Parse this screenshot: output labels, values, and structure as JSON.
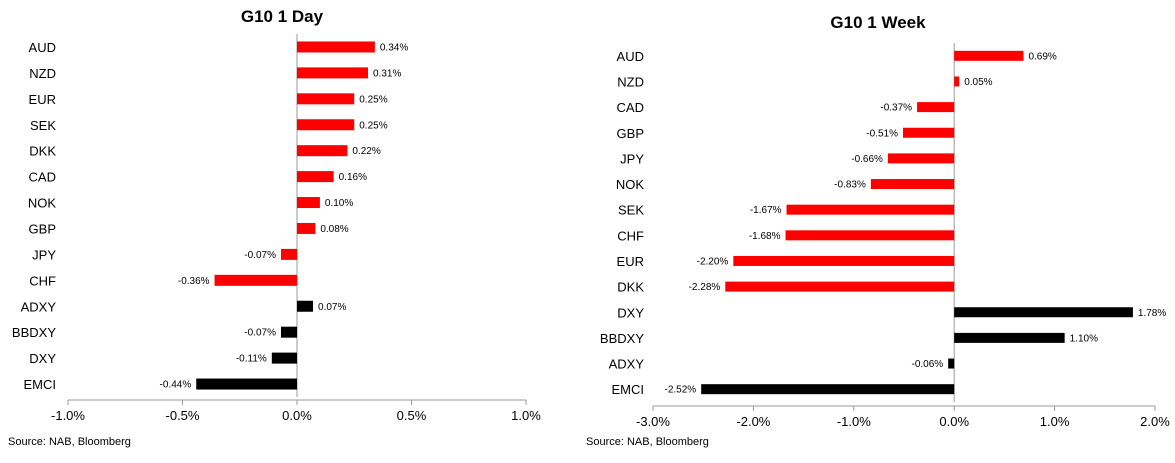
{
  "chart_data": [
    {
      "type": "bar",
      "orientation": "horizontal",
      "title": "G10 1 Day",
      "categories": [
        "AUD",
        "NZD",
        "EUR",
        "SEK",
        "DKK",
        "CAD",
        "NOK",
        "GBP",
        "JPY",
        "CHF",
        "ADXY",
        "BBDXY",
        "DXY",
        "EMCI"
      ],
      "values": [
        0.34,
        0.31,
        0.25,
        0.25,
        0.22,
        0.16,
        0.1,
        0.08,
        -0.07,
        -0.36,
        0.07,
        -0.07,
        -0.11,
        -0.44
      ],
      "value_labels": [
        "0.34%",
        "0.31%",
        "0.25%",
        "0.25%",
        "0.22%",
        "0.16%",
        "0.10%",
        "0.08%",
        "-0.07%",
        "-0.36%",
        "0.07%",
        "-0.07%",
        "-0.11%",
        "-0.44%"
      ],
      "colors": [
        "#ff0000",
        "#ff0000",
        "#ff0000",
        "#ff0000",
        "#ff0000",
        "#ff0000",
        "#ff0000",
        "#ff0000",
        "#ff0000",
        "#ff0000",
        "#000000",
        "#000000",
        "#000000",
        "#000000"
      ],
      "xlim": [
        -1.0,
        1.0
      ],
      "xticks": [
        -1.0,
        -0.5,
        0.0,
        0.5,
        1.0
      ],
      "xtick_labels": [
        "-1.0%",
        "-0.5%",
        "0.0%",
        "0.5%",
        "1.0%"
      ],
      "xlabel": "",
      "ylabel": "",
      "grid": false,
      "source": "Source: NAB, Bloomberg"
    },
    {
      "type": "bar",
      "orientation": "horizontal",
      "title": "G10 1 Week",
      "categories": [
        "AUD",
        "NZD",
        "CAD",
        "GBP",
        "JPY",
        "NOK",
        "SEK",
        "CHF",
        "EUR",
        "DKK",
        "DXY",
        "BBDXY",
        "ADXY",
        "EMCI"
      ],
      "values": [
        0.69,
        0.05,
        -0.37,
        -0.51,
        -0.66,
        -0.83,
        -1.67,
        -1.68,
        -2.2,
        -2.28,
        1.78,
        1.1,
        -0.06,
        -2.52
      ],
      "value_labels": [
        "0.69%",
        "0.05%",
        "-0.37%",
        "-0.51%",
        "-0.66%",
        "-0.83%",
        "-1.67%",
        "-1.68%",
        "-2.20%",
        "-2.28%",
        "1.78%",
        "1.10%",
        "-0.06%",
        "-2.52%"
      ],
      "colors": [
        "#ff0000",
        "#ff0000",
        "#ff0000",
        "#ff0000",
        "#ff0000",
        "#ff0000",
        "#ff0000",
        "#ff0000",
        "#ff0000",
        "#ff0000",
        "#000000",
        "#000000",
        "#000000",
        "#000000"
      ],
      "xlim": [
        -3.0,
        2.0
      ],
      "xticks": [
        -3.0,
        -2.0,
        -1.0,
        0.0,
        1.0,
        2.0
      ],
      "xtick_labels": [
        "-3.0%",
        "-2.0%",
        "-1.0%",
        "0.0%",
        "1.0%",
        "2.0%"
      ],
      "xlabel": "",
      "ylabel": "",
      "grid": false,
      "source": "Source: NAB, Bloomberg"
    }
  ]
}
